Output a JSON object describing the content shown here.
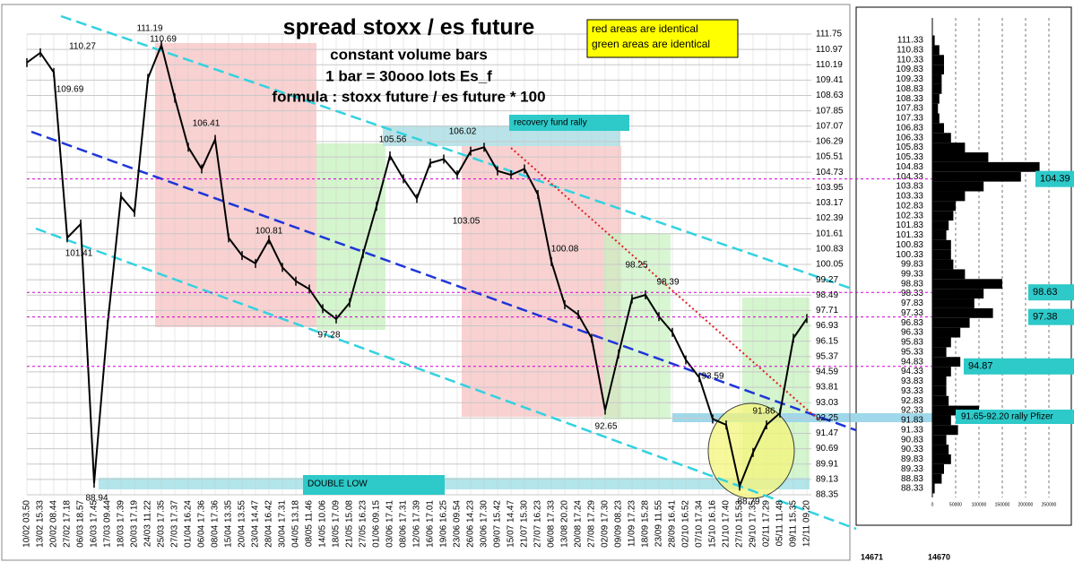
{
  "chart_data": [
    {
      "type": "line",
      "title": "spread stoxx / es future",
      "subtitle": [
        "constant volume bars",
        "1 bar = 30ooo lots Es_f",
        "formula : stoxx future / es future * 100"
      ],
      "annotations": [
        "red areas are identical",
        "green areas are identical",
        "recovery fund rally",
        "DOUBLE LOW"
      ],
      "point_labels": [
        "111.19",
        "110.69",
        "110.27",
        "109.69",
        "101.41",
        "106.41",
        "100.81",
        "97.28",
        "105.56",
        "106.02",
        "103.05",
        "100.08",
        "92.65",
        "98.25",
        "98.39",
        "93.59",
        "91.86",
        "88.79",
        "88.94"
      ],
      "categories": [
        "10/02 03.50",
        "13/02 15.33",
        "20/02 08.44",
        "27/02 17.18",
        "06/03 18.57",
        "16/03 17.45",
        "17/03 09.44",
        "18/03 17.39",
        "20/03 17.19",
        "24/03 11.22",
        "25/03 17.35",
        "27/03 17.37",
        "01/04 16.24",
        "06/04 17.36",
        "08/04 17.36",
        "15/04 13.35",
        "20/04 13.55",
        "23/04 14.47",
        "28/04 16.42",
        "30/04 17.31",
        "04/05 13.18",
        "08/05 11.46",
        "14/05 10.06",
        "18/05 17.09",
        "21/05 15.08",
        "27/05 16.23",
        "01/06 09.15",
        "03/06 17.41",
        "08/06 17.31",
        "12/06 17.39",
        "16/06 17.01",
        "19/06 16.25",
        "23/06 09.54",
        "26/06 14.23",
        "30/06 17.30",
        "09/07 15.42",
        "15/07 14.47",
        "21/07 15.30",
        "27/07 16.23",
        "06/08 17.33",
        "13/08 20.20",
        "20/08 17.24",
        "27/08 17.29",
        "02/09 17.30",
        "09/09 08.23",
        "11/09 17.23",
        "18/09 15.28",
        "23/09 11.55",
        "28/09 16.41",
        "02/10 16.52",
        "07/10 17.34",
        "15/10 16.16",
        "21/10 17.40",
        "27/10 15.53",
        "29/10 17.35",
        "02/11 17.29",
        "05/11 11.48",
        "09/11 15.35",
        "12/11 09.20"
      ],
      "series": [
        {
          "name": "spread",
          "color": "#000000",
          "values": [
            110.3,
            110.8,
            109.8,
            101.4,
            102.1,
            88.94,
            97.0,
            103.5,
            102.7,
            109.5,
            111.19,
            108.5,
            106.0,
            104.9,
            106.4,
            101.4,
            100.5,
            100.1,
            101.3,
            99.9,
            99.2,
            98.8,
            97.8,
            97.28,
            98.1,
            100.6,
            103.0,
            105.56,
            104.4,
            103.4,
            105.2,
            105.4,
            104.6,
            105.8,
            106.0,
            104.8,
            104.6,
            104.9,
            103.6,
            100.2,
            98.0,
            97.5,
            96.3,
            92.65,
            95.5,
            98.3,
            98.5,
            97.4,
            96.6,
            95.2,
            94.3,
            92.2,
            91.9,
            88.79,
            90.5,
            91.9,
            92.5,
            96.3,
            97.3
          ]
        }
      ],
      "ylim": [
        88.35,
        111.75
      ],
      "yticks": [
        88.35,
        89.13,
        89.91,
        90.69,
        91.47,
        92.25,
        93.03,
        93.81,
        94.59,
        95.37,
        96.15,
        96.93,
        97.71,
        98.49,
        99.27,
        100.05,
        100.83,
        101.61,
        102.39,
        103.17,
        103.95,
        104.73,
        105.51,
        106.29,
        107.07,
        107.85,
        108.63,
        109.41,
        110.19,
        110.97,
        111.75
      ],
      "grid": true
    },
    {
      "type": "volume_profile",
      "levels": [
        104.39,
        98.63,
        97.38,
        94.87
      ],
      "level_note": "91.65-92.20 rally Pfizer",
      "footer": [
        "14671",
        "14670"
      ],
      "categories": [
        88.33,
        88.83,
        89.33,
        89.83,
        90.33,
        90.83,
        91.33,
        91.83,
        92.33,
        92.83,
        93.33,
        93.83,
        94.33,
        94.83,
        95.33,
        95.83,
        96.33,
        96.83,
        97.33,
        97.83,
        98.33,
        98.83,
        99.33,
        99.83,
        100.33,
        100.83,
        101.33,
        101.83,
        102.33,
        102.83,
        103.33,
        103.83,
        104.33,
        104.83,
        105.33,
        105.83,
        106.33,
        106.83,
        107.33,
        107.83,
        108.33,
        108.83,
        109.33,
        109.83,
        110.33,
        110.83,
        111.33
      ],
      "values": [
        5000,
        20000,
        25000,
        40000,
        35000,
        30000,
        55000,
        40000,
        100000,
        35000,
        30000,
        30000,
        40000,
        60000,
        30000,
        40000,
        60000,
        80000,
        130000,
        90000,
        110000,
        150000,
        70000,
        45000,
        40000,
        40000,
        30000,
        35000,
        45000,
        50000,
        70000,
        110000,
        190000,
        230000,
        120000,
        70000,
        40000,
        25000,
        15000,
        12000,
        15000,
        20000,
        20000,
        25000,
        25000,
        15000,
        5000
      ],
      "color": "#000000",
      "ylim": [
        88.33,
        111.33
      ],
      "xlim": [
        0,
        250000
      ],
      "xticks": [
        0,
        50000,
        100000,
        150000,
        200000,
        250000
      ]
    }
  ]
}
